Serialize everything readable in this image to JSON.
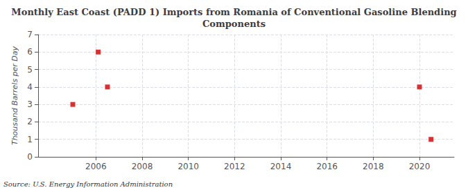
{
  "chart_data": {
    "type": "scatter",
    "title": "Monthly East Coast (PADD 1) Imports from Romania of Conventional Gasoline Blending\nComponents",
    "ylabel": "Thousand Barrels per Day",
    "source": "Source: U.S. Energy Information Administration",
    "x": [
      2005.0,
      2006.1,
      2006.5,
      2020.0,
      2020.5
    ],
    "values": [
      3,
      6,
      4,
      4,
      1
    ],
    "color": "#cc0000",
    "marker": "square",
    "xlim": [
      2003.5,
      2021.5
    ],
    "ylim": [
      0,
      7
    ],
    "xticks": [
      2006,
      2008,
      2010,
      2012,
      2014,
      2016,
      2018,
      2020
    ],
    "yticks": [
      0,
      1,
      2,
      3,
      4,
      5,
      6,
      7
    ],
    "grid": true
  }
}
